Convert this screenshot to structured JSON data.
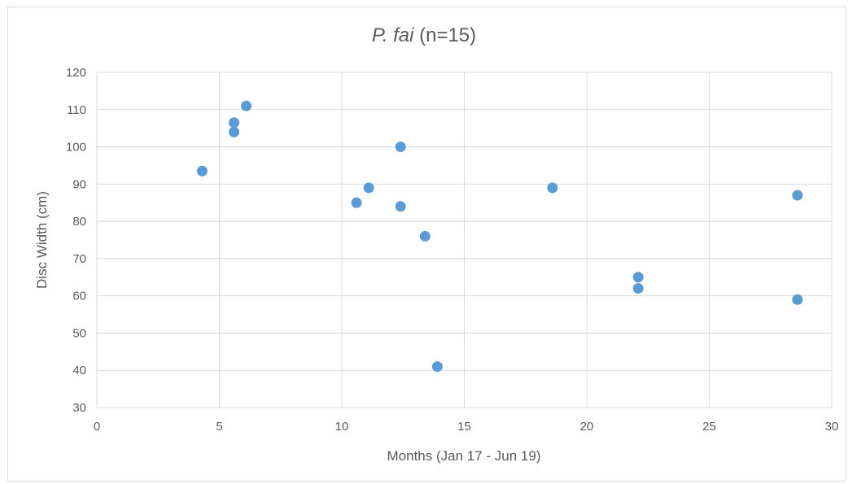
{
  "chart_data": {
    "type": "scatter",
    "title_species": "P. fai",
    "title_suffix": " (n=15)",
    "xlabel": "Months (Jan 17 - Jun 19)",
    "ylabel": "Disc Width (cm)",
    "xlim": [
      0,
      30
    ],
    "ylim": [
      30,
      120
    ],
    "xticks": [
      0,
      5,
      10,
      15,
      20,
      25,
      30
    ],
    "yticks": [
      30,
      40,
      50,
      60,
      70,
      80,
      90,
      100,
      110,
      120
    ],
    "grid": true,
    "marker_color": "#5b9bd5",
    "points": [
      {
        "x": 4.3,
        "y": 93.5
      },
      {
        "x": 5.6,
        "y": 106.5
      },
      {
        "x": 5.6,
        "y": 104
      },
      {
        "x": 6.1,
        "y": 111
      },
      {
        "x": 10.6,
        "y": 85
      },
      {
        "x": 11.1,
        "y": 89
      },
      {
        "x": 12.4,
        "y": 100
      },
      {
        "x": 12.4,
        "y": 84
      },
      {
        "x": 13.4,
        "y": 76
      },
      {
        "x": 13.9,
        "y": 41
      },
      {
        "x": 18.6,
        "y": 89
      },
      {
        "x": 22.1,
        "y": 65
      },
      {
        "x": 22.1,
        "y": 62
      },
      {
        "x": 28.6,
        "y": 87
      },
      {
        "x": 28.6,
        "y": 59
      }
    ]
  }
}
